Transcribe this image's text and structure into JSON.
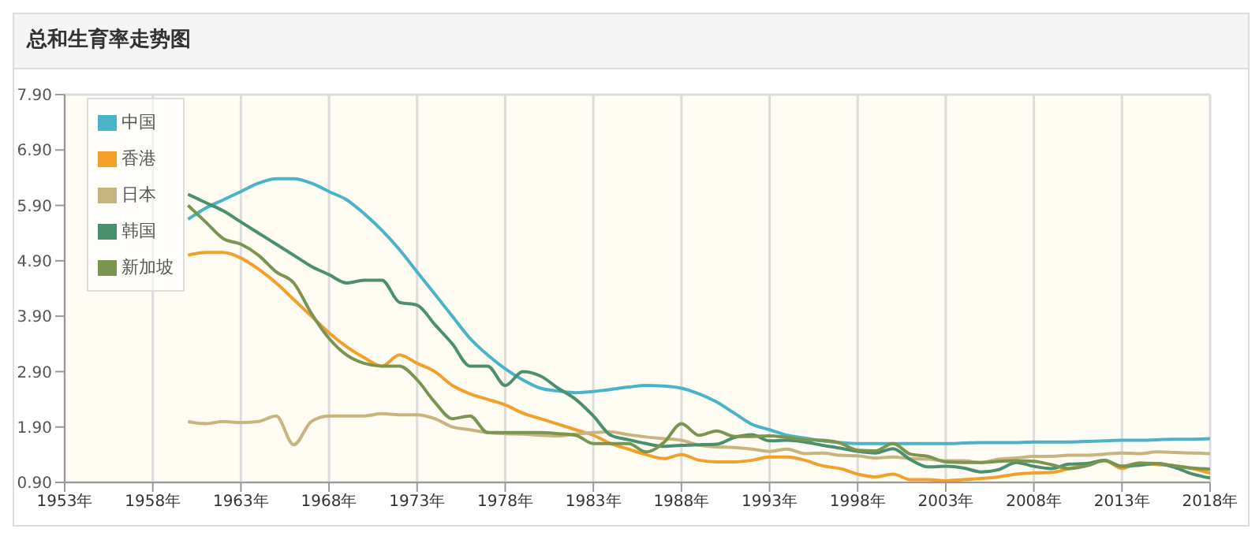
{
  "chart_data": {
    "type": "line",
    "title": "总和生育率走势图",
    "x": [
      1960,
      1961,
      1962,
      1963,
      1964,
      1965,
      1966,
      1967,
      1968,
      1969,
      1970,
      1971,
      1972,
      1973,
      1974,
      1975,
      1976,
      1977,
      1978,
      1979,
      1980,
      1981,
      1982,
      1983,
      1984,
      1985,
      1986,
      1987,
      1988,
      1989,
      1990,
      1991,
      1992,
      1993,
      1994,
      1995,
      1996,
      1997,
      1998,
      1999,
      2000,
      2001,
      2002,
      2003,
      2004,
      2005,
      2006,
      2007,
      2008,
      2009,
      2010,
      2011,
      2012,
      2013,
      2014,
      2015,
      2016,
      2017,
      2018
    ],
    "series": [
      {
        "name": "中国",
        "color": "#4bb3c8",
        "values": [
          5.65,
          5.85,
          6.0,
          6.15,
          6.3,
          6.38,
          6.38,
          6.3,
          6.15,
          6.0,
          5.75,
          5.45,
          5.1,
          4.7,
          4.3,
          3.9,
          3.5,
          3.2,
          2.95,
          2.75,
          2.6,
          2.55,
          2.52,
          2.54,
          2.58,
          2.62,
          2.65,
          2.64,
          2.6,
          2.5,
          2.35,
          2.15,
          1.95,
          1.85,
          1.75,
          1.7,
          1.65,
          1.62,
          1.6,
          1.6,
          1.6,
          1.6,
          1.6,
          1.6,
          1.61,
          1.62,
          1.62,
          1.62,
          1.63,
          1.63,
          1.63,
          1.64,
          1.65,
          1.66,
          1.66,
          1.67,
          1.68,
          1.68,
          1.69
        ]
      },
      {
        "name": "香港",
        "color": "#f2a02a",
        "values": [
          5.0,
          5.05,
          5.05,
          4.95,
          4.75,
          4.5,
          4.2,
          3.9,
          3.6,
          3.35,
          3.15,
          3.0,
          3.2,
          3.05,
          2.9,
          2.65,
          2.5,
          2.4,
          2.3,
          2.15,
          2.05,
          1.95,
          1.85,
          1.75,
          1.6,
          1.5,
          1.4,
          1.33,
          1.4,
          1.3,
          1.27,
          1.27,
          1.3,
          1.36,
          1.36,
          1.3,
          1.2,
          1.15,
          1.05,
          1.0,
          1.05,
          0.95,
          0.95,
          0.93,
          0.95,
          0.97,
          1.0,
          1.05,
          1.07,
          1.08,
          1.15,
          1.22,
          1.3,
          1.15,
          1.25,
          1.22,
          1.2,
          1.15,
          1.07
        ]
      },
      {
        "name": "日本",
        "color": "#c8b47e",
        "values": [
          2.0,
          1.96,
          2.0,
          1.98,
          2.0,
          2.1,
          1.58,
          2.0,
          2.1,
          2.1,
          2.1,
          2.14,
          2.12,
          2.12,
          2.05,
          1.9,
          1.85,
          1.8,
          1.78,
          1.77,
          1.75,
          1.74,
          1.77,
          1.8,
          1.81,
          1.76,
          1.72,
          1.69,
          1.66,
          1.57,
          1.54,
          1.53,
          1.5,
          1.46,
          1.5,
          1.42,
          1.43,
          1.39,
          1.38,
          1.34,
          1.36,
          1.33,
          1.32,
          1.29,
          1.29,
          1.26,
          1.32,
          1.34,
          1.37,
          1.37,
          1.39,
          1.39,
          1.41,
          1.43,
          1.42,
          1.45,
          1.44,
          1.43,
          1.42
        ]
      },
      {
        "name": "韩国",
        "color": "#4a8f6e",
        "values": [
          6.1,
          5.95,
          5.8,
          5.6,
          5.4,
          5.2,
          5.0,
          4.8,
          4.65,
          4.5,
          4.55,
          4.55,
          4.15,
          4.1,
          3.75,
          3.4,
          3.0,
          3.0,
          2.65,
          2.9,
          2.82,
          2.6,
          2.4,
          2.1,
          1.75,
          1.67,
          1.6,
          1.55,
          1.57,
          1.58,
          1.59,
          1.71,
          1.76,
          1.65,
          1.66,
          1.63,
          1.57,
          1.52,
          1.46,
          1.43,
          1.51,
          1.31,
          1.18,
          1.19,
          1.16,
          1.09,
          1.13,
          1.26,
          1.19,
          1.15,
          1.23,
          1.24,
          1.3,
          1.19,
          1.21,
          1.24,
          1.17,
          1.05,
          0.98
        ]
      },
      {
        "name": "新加坡",
        "color": "#7a9550",
        "values": [
          5.9,
          5.6,
          5.3,
          5.2,
          5.0,
          4.7,
          4.5,
          3.95,
          3.5,
          3.2,
          3.05,
          3.0,
          3.0,
          2.75,
          2.35,
          2.05,
          2.1,
          1.8,
          1.8,
          1.8,
          1.8,
          1.78,
          1.75,
          1.6,
          1.6,
          1.6,
          1.45,
          1.62,
          1.96,
          1.75,
          1.83,
          1.73,
          1.73,
          1.74,
          1.71,
          1.67,
          1.66,
          1.61,
          1.48,
          1.47,
          1.6,
          1.41,
          1.37,
          1.27,
          1.26,
          1.26,
          1.28,
          1.29,
          1.28,
          1.22,
          1.15,
          1.2,
          1.29,
          1.19,
          1.25,
          1.24,
          1.2,
          1.16,
          1.14
        ]
      }
    ],
    "xlim": [
      1953,
      2018
    ],
    "xticks": [
      {
        "value": 1953,
        "label": "1953年"
      },
      {
        "value": 1958,
        "label": "1958年"
      },
      {
        "value": 1963,
        "label": "1963年"
      },
      {
        "value": 1968,
        "label": "1968年"
      },
      {
        "value": 1973,
        "label": "1973年"
      },
      {
        "value": 1978,
        "label": "1978年"
      },
      {
        "value": 1983,
        "label": "1983年"
      },
      {
        "value": 1988,
        "label": "1988年"
      },
      {
        "value": 1993,
        "label": "1993年"
      },
      {
        "value": 1998,
        "label": "1998年"
      },
      {
        "value": 2003,
        "label": "2003年"
      },
      {
        "value": 2008,
        "label": "2008年"
      },
      {
        "value": 2013,
        "label": "2013年"
      },
      {
        "value": 2018,
        "label": "2018年"
      }
    ],
    "ylim": [
      0.9,
      7.9
    ],
    "yticks": [
      {
        "value": 0.9,
        "label": "0.90"
      },
      {
        "value": 1.9,
        "label": "1.90"
      },
      {
        "value": 2.9,
        "label": "2.90"
      },
      {
        "value": 3.9,
        "label": "3.90"
      },
      {
        "value": 4.9,
        "label": "4.90"
      },
      {
        "value": 5.9,
        "label": "5.90"
      },
      {
        "value": 6.9,
        "label": "6.90"
      },
      {
        "value": 7.9,
        "label": "7.90"
      }
    ],
    "grid": true,
    "legend": "top left",
    "marker": "none",
    "line_style": "solid"
  }
}
